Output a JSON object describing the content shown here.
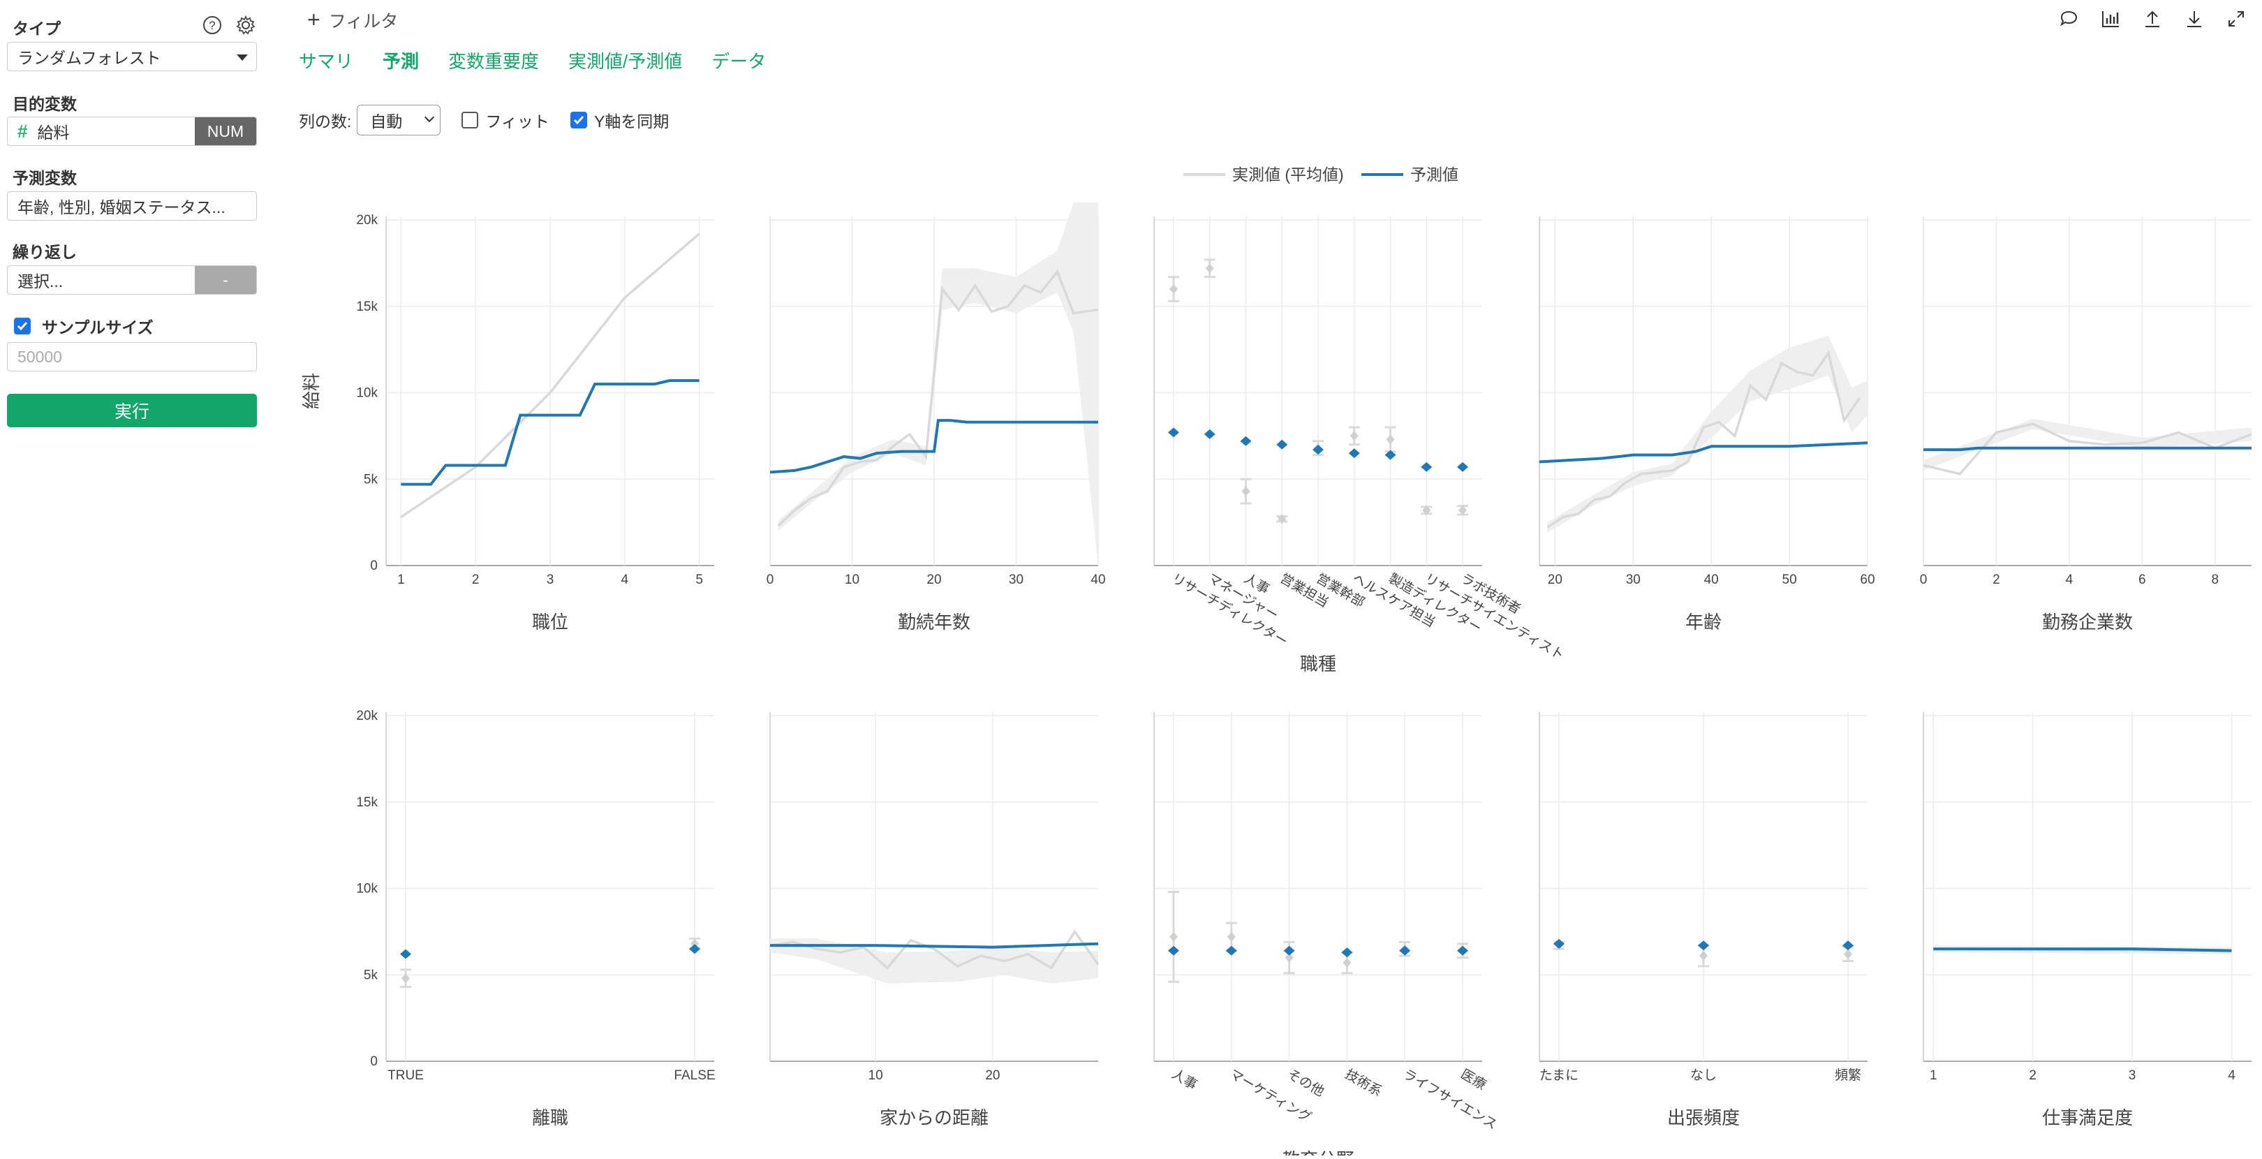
{
  "sidebar": {
    "type_label": "タイプ",
    "type_value": "ランダムフォレスト",
    "target_label": "目的変数",
    "target_value": "給料",
    "target_badge": "NUM",
    "predictors_label": "予測変数",
    "predictors_value": "年齢, 性別, 婚姻ステータス...",
    "repeat_label": "繰り返し",
    "repeat_value": "選択...",
    "repeat_button": "-",
    "sample_label": "サンプルサイズ",
    "sample_checked": true,
    "sample_placeholder": "50000",
    "run_button": "実行"
  },
  "topbar": {
    "filter_label": "フィルタ",
    "tabs": [
      {
        "label": "サマリ",
        "active": false
      },
      {
        "label": "予測",
        "active": true
      },
      {
        "label": "変数重要度",
        "active": false
      },
      {
        "label": "実測値/予測値",
        "active": false
      },
      {
        "label": "データ",
        "active": false
      }
    ]
  },
  "controls": {
    "columns_label": "列の数:",
    "columns_value": "自動",
    "fit_label": "フィット",
    "fit_checked": false,
    "sync_y_label": "Y軸を同期",
    "sync_y_checked": true
  },
  "colors": {
    "accent": "#13a66a",
    "predicted": "#1f77b4",
    "actual": "#d9d9d9",
    "band": "#efefef"
  },
  "chart_data": {
    "type": "line",
    "ylabel": "給料",
    "ylim": [
      0,
      20000
    ],
    "yticks": [
      "0",
      "5k",
      "10k",
      "15k",
      "20k"
    ],
    "legend": [
      {
        "name": "実測値 (平均値)",
        "color": "#d9d9d9"
      },
      {
        "name": "予測値",
        "color": "#1f77b4"
      }
    ],
    "legend_placement": "top-center",
    "panels": [
      {
        "xlabel": "職位",
        "kind": "numeric",
        "xlim": [
          0.8,
          5.2
        ],
        "xticks": [
          1,
          2,
          3,
          4,
          5
        ],
        "actual": [
          [
            1,
            2800
          ],
          [
            2,
            5700
          ],
          [
            3,
            10000
          ],
          [
            4,
            15500
          ],
          [
            5,
            19200
          ]
        ],
        "predicted": [
          [
            1,
            4700
          ],
          [
            1.4,
            4700
          ],
          [
            1.6,
            5800
          ],
          [
            2.4,
            5800
          ],
          [
            2.6,
            8700
          ],
          [
            3.4,
            8700
          ],
          [
            3.6,
            10500
          ],
          [
            4.4,
            10500
          ],
          [
            4.6,
            10700
          ],
          [
            5,
            10700
          ]
        ]
      },
      {
        "xlabel": "勤続年数",
        "kind": "numeric",
        "xlim": [
          0,
          40
        ],
        "xticks": [
          0,
          10,
          20,
          30,
          40
        ],
        "actual": [
          [
            1,
            2300
          ],
          [
            3,
            3200
          ],
          [
            5,
            3900
          ],
          [
            7,
            4300
          ],
          [
            9,
            5700
          ],
          [
            11,
            6000
          ],
          [
            13,
            6100
          ],
          [
            15,
            6900
          ],
          [
            17,
            7600
          ],
          [
            19,
            6300
          ],
          [
            21,
            16000
          ],
          [
            23,
            14800
          ],
          [
            25,
            16200
          ],
          [
            27,
            14700
          ],
          [
            29,
            15000
          ],
          [
            31,
            16200
          ],
          [
            33,
            15800
          ],
          [
            35,
            17000
          ],
          [
            37,
            14600
          ],
          [
            40,
            14800
          ]
        ],
        "band": [
          [
            1,
            2000,
            2600
          ],
          [
            5,
            3600,
            4200
          ],
          [
            10,
            5400,
            6300
          ],
          [
            15,
            6500,
            7300
          ],
          [
            19,
            5800,
            6900
          ],
          [
            21,
            14800,
            17200
          ],
          [
            25,
            15200,
            17200
          ],
          [
            30,
            14600,
            16700
          ],
          [
            35,
            15800,
            18200
          ],
          [
            37,
            13500,
            21000
          ],
          [
            40,
            0,
            21000
          ]
        ],
        "predicted": [
          [
            0,
            5400
          ],
          [
            3,
            5500
          ],
          [
            5,
            5700
          ],
          [
            7,
            6000
          ],
          [
            9,
            6300
          ],
          [
            11,
            6200
          ],
          [
            13,
            6500
          ],
          [
            16,
            6600
          ],
          [
            20,
            6600
          ],
          [
            20.5,
            8400
          ],
          [
            22,
            8400
          ],
          [
            24,
            8300
          ],
          [
            30,
            8300
          ],
          [
            40,
            8300
          ]
        ]
      },
      {
        "xlabel": "職種",
        "kind": "category",
        "categories": [
          "リサーチディレクター",
          "マネージャー",
          "人事",
          "営業担当",
          "営業幹部",
          "ヘルスケア担当",
          "製造ディレクター",
          "リサーチサイエンティスト",
          "ラボ技術者"
        ],
        "actual": [
          16000,
          17200,
          4300,
          2700,
          6800,
          7500,
          7300,
          3200,
          3200
        ],
        "actual_err": [
          700,
          500,
          700,
          150,
          400,
          500,
          700,
          200,
          250
        ],
        "predicted": [
          7700,
          7600,
          7200,
          7000,
          6700,
          6500,
          6400,
          5700,
          5700
        ]
      },
      {
        "xlabel": "年齢",
        "kind": "numeric",
        "xlim": [
          18,
          60
        ],
        "xticks": [
          20,
          30,
          40,
          50,
          60
        ],
        "actual": [
          [
            19,
            2200
          ],
          [
            21,
            2800
          ],
          [
            23,
            3000
          ],
          [
            25,
            3800
          ],
          [
            27,
            4000
          ],
          [
            29,
            4800
          ],
          [
            31,
            5300
          ],
          [
            33,
            5400
          ],
          [
            35,
            5500
          ],
          [
            37,
            6000
          ],
          [
            39,
            8000
          ],
          [
            41,
            8300
          ],
          [
            43,
            7500
          ],
          [
            45,
            10400
          ],
          [
            47,
            9600
          ],
          [
            49,
            11700
          ],
          [
            51,
            11200
          ],
          [
            53,
            11000
          ],
          [
            55,
            12300
          ],
          [
            57,
            8400
          ],
          [
            59,
            9700
          ]
        ],
        "band": [
          [
            19,
            1900,
            2500
          ],
          [
            25,
            3500,
            4100
          ],
          [
            30,
            4600,
            5400
          ],
          [
            35,
            5200,
            5900
          ],
          [
            40,
            7400,
            8900
          ],
          [
            45,
            9500,
            11300
          ],
          [
            50,
            10200,
            12600
          ],
          [
            55,
            11000,
            13300
          ],
          [
            58,
            7700,
            10300
          ],
          [
            60,
            8700,
            10700
          ]
        ],
        "predicted": [
          [
            18,
            6000
          ],
          [
            22,
            6100
          ],
          [
            26,
            6200
          ],
          [
            28,
            6300
          ],
          [
            30,
            6400
          ],
          [
            35,
            6400
          ],
          [
            38,
            6600
          ],
          [
            40,
            6900
          ],
          [
            45,
            6900
          ],
          [
            50,
            6900
          ],
          [
            55,
            7000
          ],
          [
            60,
            7100
          ]
        ]
      },
      {
        "xlabel": "勤務企業数",
        "kind": "numeric",
        "xlim": [
          0,
          9
        ],
        "xticks": [
          0,
          2,
          4,
          6,
          8
        ],
        "actual": [
          [
            0,
            5800
          ],
          [
            1,
            5300
          ],
          [
            2,
            7700
          ],
          [
            3,
            8200
          ],
          [
            4,
            7200
          ],
          [
            5,
            7000
          ],
          [
            6,
            7100
          ],
          [
            7,
            7700
          ],
          [
            8,
            6800
          ],
          [
            9,
            7600
          ]
        ],
        "band": [
          [
            0,
            5500,
            6100
          ],
          [
            3,
            7900,
            8500
          ],
          [
            6,
            6800,
            7400
          ],
          [
            9,
            7200,
            8000
          ]
        ],
        "predicted": [
          [
            0,
            6700
          ],
          [
            1,
            6700
          ],
          [
            1.5,
            6800
          ],
          [
            9,
            6800
          ]
        ]
      },
      {
        "xlabel": "離職",
        "kind": "category",
        "categories": [
          "TRUE",
          "FALSE"
        ],
        "actual": [
          4800,
          6800
        ],
        "actual_err": [
          500,
          300
        ],
        "predicted": [
          6200,
          6500
        ]
      },
      {
        "xlabel": "家からの距離",
        "kind": "numeric",
        "xlim": [
          1,
          29
        ],
        "xticks": [
          10,
          20
        ],
        "actual": [
          [
            1,
            6700
          ],
          [
            3,
            6900
          ],
          [
            5,
            6500
          ],
          [
            7,
            6300
          ],
          [
            9,
            6600
          ],
          [
            11,
            5400
          ],
          [
            13,
            7000
          ],
          [
            15,
            6500
          ],
          [
            17,
            5500
          ],
          [
            19,
            6100
          ],
          [
            21,
            5800
          ],
          [
            23,
            6200
          ],
          [
            25,
            5400
          ],
          [
            27,
            7500
          ],
          [
            29,
            5600
          ]
        ],
        "band": [
          [
            1,
            6300,
            7100
          ],
          [
            5,
            5900,
            7100
          ],
          [
            11,
            4500,
            6300
          ],
          [
            17,
            4600,
            6400
          ],
          [
            21,
            5000,
            6600
          ],
          [
            25,
            4500,
            6300
          ],
          [
            29,
            4800,
            6400
          ]
        ],
        "predicted": [
          [
            1,
            6700
          ],
          [
            10,
            6700
          ],
          [
            20,
            6600
          ],
          [
            29,
            6800
          ]
        ]
      },
      {
        "xlabel": "教育分野",
        "kind": "category",
        "categories": [
          "人事",
          "マーケティング",
          "その他",
          "技術系",
          "ライフサイエンス",
          "医療"
        ],
        "actual": [
          7200,
          7200,
          6000,
          5700,
          6500,
          6400
        ],
        "actual_err": [
          2600,
          800,
          900,
          600,
          400,
          400
        ],
        "predicted": [
          6400,
          6400,
          6400,
          6300,
          6400,
          6400
        ]
      },
      {
        "xlabel": "出張頻度",
        "kind": "category",
        "categories": [
          "たまに",
          "なし",
          "頻繁"
        ],
        "actual": [
          6700,
          6100,
          6200
        ],
        "actual_err": [
          200,
          600,
          400
        ],
        "predicted": [
          6800,
          6700,
          6700
        ]
      },
      {
        "xlabel": "仕事満足度",
        "kind": "numeric",
        "xlim": [
          0.9,
          4.2
        ],
        "xticks": [
          1,
          2,
          3,
          4
        ],
        "actual": [
          [
            1,
            6500
          ],
          [
            4,
            6400
          ]
        ],
        "band": [
          [
            1,
            6300,
            6700
          ],
          [
            4,
            6200,
            6600
          ]
        ],
        "predicted": [
          [
            1,
            6500
          ],
          [
            2,
            6500
          ],
          [
            3,
            6500
          ],
          [
            4,
            6400
          ]
        ]
      }
    ]
  }
}
